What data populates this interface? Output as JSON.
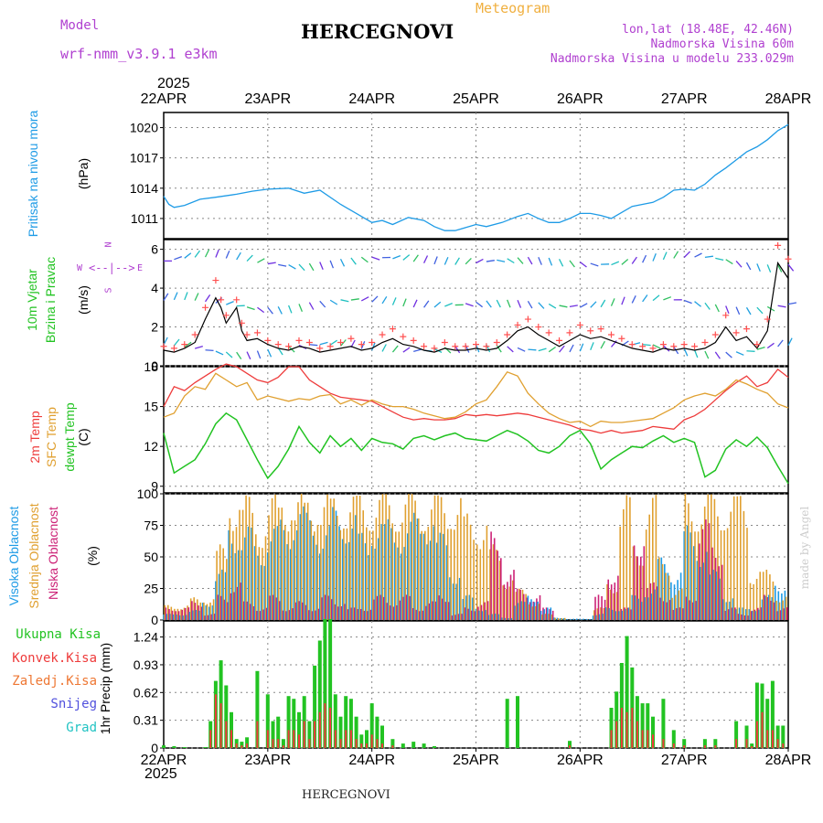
{
  "header": {
    "model_label": "Model",
    "model_name": "wrf-nmm_v3.9.1  e3km",
    "title": "HERCEGNOVI",
    "meteogram_label": "Meteogram",
    "coords": "lon,lat (18.48E, 42.46N)",
    "altitude": "Nadmorska Visina 60m",
    "model_altitude": "Nadmorska Visina u modelu 233.029m"
  },
  "footer": {
    "station": "HERCEGNOVI",
    "credit": "made by Angel"
  },
  "colors": {
    "pressure": "#1e9be6",
    "wind_speed": "#000000",
    "wind_gust": "#ff5050",
    "temp2m": "#ee3b3b",
    "sfc_temp": "#e0a030",
    "dewpt": "#22c322",
    "cloud_high": "#1e9be6",
    "cloud_mid": "#e0a030",
    "cloud_low": "#cc2277",
    "precip_total": "#22c322",
    "precip_conv": "#ee3b3b",
    "precip_frozen": "#ee7733",
    "precip_snow": "#5050dd",
    "precip_hail": "#22c3c3",
    "wind_label": "#22c322",
    "wind_axis_label": "#b040d0",
    "header_purple": "#b040d0",
    "header_orange": "#f0b040"
  },
  "time_axis": {
    "year": "2025",
    "days": [
      "22APR",
      "23APR",
      "24APR",
      "25APR",
      "26APR",
      "27APR",
      "28APR"
    ]
  },
  "chart_data": [
    {
      "id": "pressure",
      "type": "line",
      "ylabel_colored": "Pritisak na nivou mora",
      "ylabel_unit": "(hPa)",
      "yticks": [
        "1020",
        "1017",
        "1014",
        "1011"
      ],
      "ylim": [
        1009,
        1021.5
      ],
      "x": [
        0,
        0.05,
        0.1,
        0.2,
        0.35,
        0.5,
        0.7,
        0.85,
        1.0,
        1.2,
        1.35,
        1.5,
        1.7,
        1.9,
        2.0,
        2.1,
        2.2,
        2.35,
        2.5,
        2.6,
        2.7,
        2.8,
        2.9,
        3.0,
        3.1,
        3.25,
        3.4,
        3.5,
        3.6,
        3.7,
        3.8,
        3.9,
        4.0,
        4.1,
        4.2,
        4.3,
        4.4,
        4.5,
        4.6,
        4.7,
        4.8,
        4.9,
        5.0,
        5.1,
        5.2,
        5.3,
        5.4,
        5.5,
        5.6,
        5.7,
        5.8,
        5.9,
        6.0
      ],
      "series": [
        {
          "name": "Pritisak",
          "values": [
            1013.2,
            1012.4,
            1012.1,
            1012.3,
            1012.9,
            1013.1,
            1013.4,
            1013.7,
            1013.9,
            1014.0,
            1013.5,
            1013.8,
            1012.4,
            1011.2,
            1010.6,
            1010.8,
            1010.4,
            1011.1,
            1010.8,
            1010.2,
            1009.8,
            1009.8,
            1010.1,
            1010.4,
            1010.2,
            1010.6,
            1011.2,
            1011.5,
            1011.0,
            1010.6,
            1010.6,
            1011.0,
            1011.5,
            1011.5,
            1011.3,
            1011.0,
            1011.6,
            1012.2,
            1012.4,
            1012.6,
            1013.1,
            1013.8,
            1013.9,
            1013.8,
            1014.4,
            1015.3,
            1016.0,
            1016.8,
            1017.6,
            1018.1,
            1018.8,
            1019.7,
            1020.3
          ]
        }
      ]
    },
    {
      "id": "wind",
      "type": "line",
      "ylabel_colored": "10m Vjetar",
      "ylabel_colored2": "Brzina i Pravac",
      "ylabel_unit": "(m/s)",
      "compass": {
        "north": "N",
        "south": "S",
        "west": "W",
        "east": "E"
      },
      "yticks": [
        "6",
        "4",
        "2",
        "0"
      ],
      "ylim": [
        0,
        6.5
      ],
      "x": [
        0,
        0.1,
        0.2,
        0.3,
        0.4,
        0.5,
        0.55,
        0.6,
        0.7,
        0.75,
        0.8,
        0.9,
        1.0,
        1.1,
        1.2,
        1.3,
        1.4,
        1.5,
        1.6,
        1.7,
        1.8,
        1.9,
        2.0,
        2.1,
        2.2,
        2.3,
        2.4,
        2.5,
        2.6,
        2.7,
        2.8,
        2.9,
        3.0,
        3.1,
        3.2,
        3.3,
        3.4,
        3.5,
        3.6,
        3.7,
        3.8,
        3.9,
        4.0,
        4.1,
        4.2,
        4.3,
        4.4,
        4.5,
        4.6,
        4.7,
        4.8,
        4.9,
        5.0,
        5.1,
        5.2,
        5.3,
        5.4,
        5.5,
        5.6,
        5.7,
        5.8,
        5.9,
        6.0
      ],
      "series": [
        {
          "name": "speed",
          "values": [
            0.8,
            0.7,
            0.9,
            1.2,
            2.4,
            3.5,
            3.0,
            2.2,
            3.0,
            1.8,
            1.3,
            1.4,
            1.1,
            0.9,
            0.8,
            1.0,
            0.9,
            0.7,
            0.8,
            0.9,
            1.0,
            0.8,
            0.9,
            1.2,
            1.4,
            1.1,
            1.0,
            0.8,
            0.7,
            0.9,
            0.8,
            0.8,
            0.9,
            0.8,
            0.9,
            1.3,
            1.8,
            2.0,
            1.6,
            1.3,
            1.0,
            1.3,
            1.6,
            1.4,
            1.5,
            1.3,
            1.1,
            0.9,
            0.8,
            0.7,
            0.9,
            0.8,
            0.9,
            0.8,
            0.9,
            1.2,
            2.0,
            1.3,
            1.5,
            0.9,
            1.8,
            5.3,
            4.5
          ]
        },
        {
          "name": "gust",
          "values": [
            1.0,
            0.9,
            1.1,
            1.6,
            3.0,
            4.4,
            3.4,
            2.6,
            3.4,
            2.2,
            1.6,
            1.7,
            1.3,
            1.1,
            1.0,
            1.3,
            1.2,
            0.9,
            1.0,
            1.2,
            1.4,
            1.1,
            1.2,
            1.6,
            1.9,
            1.5,
            1.3,
            1.0,
            0.9,
            1.2,
            1.0,
            1.0,
            1.1,
            1.0,
            1.2,
            1.6,
            2.1,
            2.4,
            2.0,
            1.7,
            1.3,
            1.7,
            2.1,
            1.8,
            1.9,
            1.6,
            1.4,
            1.1,
            1.0,
            0.9,
            1.1,
            1.0,
            1.1,
            1.0,
            1.2,
            1.6,
            2.6,
            1.7,
            1.9,
            1.1,
            2.4,
            6.2,
            5.5
          ]
        }
      ]
    },
    {
      "id": "temperature",
      "type": "line",
      "ylabel_colored": "2m Temp",
      "ylabel_colored2": "SFC Temp",
      "ylabel_colored3": "dewpt Temp",
      "ylabel_unit": "(C)",
      "yticks": [
        "18",
        "15",
        "12",
        "9"
      ],
      "ylim": [
        8.5,
        18
      ],
      "x": [
        0,
        0.1,
        0.2,
        0.3,
        0.4,
        0.5,
        0.6,
        0.7,
        0.8,
        0.9,
        1.0,
        1.1,
        1.2,
        1.3,
        1.4,
        1.5,
        1.6,
        1.7,
        1.8,
        1.9,
        2.0,
        2.1,
        2.2,
        2.3,
        2.4,
        2.5,
        2.6,
        2.7,
        2.8,
        2.9,
        3.0,
        3.1,
        3.2,
        3.3,
        3.4,
        3.5,
        3.6,
        3.7,
        3.8,
        3.9,
        4.0,
        4.1,
        4.2,
        4.3,
        4.4,
        4.5,
        4.6,
        4.7,
        4.8,
        4.9,
        5.0,
        5.1,
        5.2,
        5.3,
        5.4,
        5.5,
        5.6,
        5.7,
        5.8,
        5.9,
        6.0
      ],
      "series": [
        {
          "name": "2m Temp",
          "values": [
            15.0,
            16.5,
            16.2,
            16.8,
            17.3,
            17.8,
            18.2,
            18.0,
            17.5,
            17.0,
            16.8,
            17.2,
            18.0,
            18.0,
            17.0,
            16.5,
            16.0,
            15.7,
            15.6,
            15.5,
            15.4,
            15.0,
            14.6,
            14.2,
            14.0,
            14.1,
            14.0,
            14.0,
            14.1,
            14.4,
            14.3,
            14.4,
            14.3,
            14.4,
            14.5,
            14.4,
            14.2,
            14.0,
            13.8,
            13.6,
            13.3,
            13.2,
            13.0,
            13.2,
            13.0,
            13.1,
            13.2,
            13.5,
            13.4,
            13.3,
            14.0,
            14.3,
            14.8,
            15.5,
            16.2,
            16.8,
            17.3,
            16.5,
            16.8,
            17.8,
            17.2
          ]
        },
        {
          "name": "SFC Temp",
          "values": [
            14.2,
            14.5,
            15.8,
            16.5,
            16.3,
            17.5,
            17.0,
            16.5,
            16.8,
            15.5,
            15.8,
            15.6,
            15.4,
            15.6,
            15.5,
            15.8,
            15.9,
            15.2,
            15.5,
            15.1,
            15.5,
            15.2,
            15.0,
            15.0,
            14.8,
            14.5,
            14.3,
            14.1,
            14.2,
            14.6,
            15.2,
            15.5,
            16.5,
            17.6,
            17.3,
            16.0,
            15.2,
            14.5,
            14.1,
            13.8,
            13.9,
            13.5,
            13.9,
            13.8,
            13.8,
            13.9,
            14.0,
            14.1,
            14.5,
            14.9,
            15.5,
            15.8,
            16.0,
            15.8,
            16.3,
            17.0,
            16.7,
            16.3,
            16.0,
            15.2,
            14.9
          ]
        },
        {
          "name": "dewpt Temp",
          "values": [
            13.0,
            10.0,
            10.5,
            11.0,
            12.2,
            13.7,
            14.5,
            14.0,
            12.5,
            11.0,
            9.6,
            10.5,
            11.8,
            13.5,
            12.3,
            11.5,
            12.8,
            12.0,
            12.6,
            11.7,
            12.6,
            12.3,
            12.2,
            11.8,
            12.6,
            12.8,
            12.5,
            12.8,
            13.0,
            12.6,
            12.5,
            12.4,
            12.8,
            13.2,
            12.9,
            12.4,
            11.7,
            11.5,
            12.0,
            12.8,
            13.2,
            12.2,
            10.3,
            11.0,
            11.5,
            12.0,
            11.9,
            12.4,
            12.8,
            12.3,
            12.6,
            12.3,
            9.7,
            10.2,
            11.8,
            12.5,
            12.0,
            12.7,
            11.9,
            10.5,
            9.2
          ]
        }
      ]
    },
    {
      "id": "clouds",
      "type": "bar",
      "ylabel_colored": "Visoka Oblacnost",
      "ylabel_colored2": "Srednja Oblacnost",
      "ylabel_colored3": "Niska Oblacnost",
      "ylabel_unit": "(%)",
      "yticks": [
        "100",
        "75",
        "50",
        "25",
        "0"
      ],
      "ylim": [
        0,
        100
      ],
      "x": [
        0,
        0.125,
        0.25,
        0.375,
        0.5,
        0.625,
        0.75,
        0.875,
        1.0,
        1.125,
        1.25,
        1.375,
        1.5,
        1.625,
        1.75,
        1.875,
        2.0,
        2.125,
        2.25,
        2.375,
        2.5,
        2.625,
        2.75,
        2.875,
        3.0,
        3.125,
        3.25,
        3.375,
        3.5,
        3.625,
        3.75,
        3.875,
        4.0,
        4.125,
        4.25,
        4.375,
        4.5,
        4.625,
        4.75,
        4.875,
        5.0,
        5.125,
        5.25,
        5.375,
        5.5,
        5.625,
        5.75,
        5.875
      ],
      "series": [
        {
          "name": "Visoka",
          "values": [
            5,
            5,
            8,
            15,
            40,
            75,
            75,
            60,
            75,
            80,
            90,
            85,
            75,
            90,
            85,
            70,
            80,
            80,
            75,
            85,
            85,
            70,
            40,
            20,
            10,
            5,
            2,
            15,
            20,
            10,
            2,
            1,
            1,
            5,
            10,
            10,
            20,
            25,
            50,
            40,
            75,
            60,
            40,
            20,
            10,
            10,
            20,
            30
          ]
        },
        {
          "name": "Srednja",
          "values": [
            12,
            12,
            18,
            18,
            60,
            100,
            100,
            80,
            100,
            100,
            100,
            100,
            100,
            100,
            100,
            100,
            100,
            100,
            100,
            100,
            100,
            100,
            100,
            85,
            80,
            60,
            35,
            25,
            15,
            5,
            2,
            0,
            0,
            10,
            30,
            100,
            60,
            100,
            50,
            25,
            100,
            100,
            100,
            100,
            100,
            40,
            40,
            20
          ]
        },
        {
          "name": "Niska",
          "values": [
            10,
            10,
            15,
            5,
            20,
            30,
            15,
            10,
            20,
            10,
            15,
            10,
            20,
            15,
            10,
            10,
            20,
            15,
            20,
            10,
            15,
            20,
            5,
            10,
            15,
            70,
            40,
            25,
            20,
            10,
            0,
            0,
            0,
            20,
            40,
            10,
            70,
            30,
            20,
            10,
            20,
            80,
            60,
            10,
            5,
            10,
            20,
            10
          ]
        }
      ]
    },
    {
      "id": "precip",
      "type": "bar",
      "ylabel_unit": "1hr Precip (mm)",
      "legend": [
        "Ukupna Kisa",
        "Konvek.Kisa",
        "Zaledj.Kisa",
        "Snijeg",
        "Grad"
      ],
      "yticks": [
        "1.24",
        "0.93",
        "0.62",
        "0.31",
        "0"
      ],
      "ylim": [
        0,
        1.42
      ],
      "x": [
        0.0,
        0.1,
        0.2,
        0.3,
        0.4,
        0.45,
        0.5,
        0.55,
        0.6,
        0.65,
        0.7,
        0.75,
        0.8,
        0.9,
        1.0,
        1.05,
        1.1,
        1.15,
        1.2,
        1.25,
        1.3,
        1.35,
        1.4,
        1.45,
        1.5,
        1.55,
        1.6,
        1.65,
        1.7,
        1.75,
        1.8,
        1.85,
        1.9,
        1.95,
        2.0,
        2.05,
        2.1,
        2.2,
        2.3,
        2.4,
        2.5,
        2.6,
        2.7,
        2.8,
        2.9,
        3.0,
        3.1,
        3.2,
        3.3,
        3.4,
        3.5,
        3.6,
        3.7,
        3.8,
        3.9,
        4.0,
        4.1,
        4.15,
        4.2,
        4.25,
        4.3,
        4.35,
        4.4,
        4.45,
        4.5,
        4.55,
        4.6,
        4.65,
        4.7,
        4.8,
        4.9,
        5.0,
        5.1,
        5.2,
        5.3,
        5.4,
        5.5,
        5.6,
        5.65,
        5.7,
        5.75,
        5.8,
        5.85,
        5.9,
        5.95
      ],
      "series": [
        {
          "name": "Ukupna Kisa",
          "values": [
            0.03,
            0.02,
            0.01,
            0.0,
            0.01,
            0.3,
            0.75,
            0.98,
            0.7,
            0.4,
            0.1,
            0.07,
            0.12,
            0.86,
            0.6,
            0.3,
            0.35,
            0.1,
            0.58,
            0.55,
            0.4,
            0.58,
            0.3,
            0.92,
            1.2,
            1.44,
            1.44,
            0.6,
            0.35,
            0.58,
            0.55,
            0.35,
            0.15,
            0.2,
            0.5,
            0.35,
            0.25,
            0.1,
            0.05,
            0.07,
            0.05,
            0.02,
            0.0,
            0.0,
            0.0,
            0.0,
            0.0,
            0.0,
            0.55,
            0.58,
            0.0,
            0.0,
            0.0,
            0.0,
            0.08,
            0.0,
            0.0,
            0.0,
            0.0,
            0.0,
            0.45,
            0.63,
            0.95,
            1.25,
            0.9,
            0.58,
            0.5,
            0.5,
            0.35,
            0.55,
            0.2,
            0.1,
            0.0,
            0.1,
            0.1,
            0.0,
            0.3,
            0.25,
            0.05,
            0.73,
            0.72,
            0.55,
            0.75,
            0.25,
            0.25
          ]
        },
        {
          "name": "Konvek.Kisa",
          "values": [
            0.0,
            0.0,
            0.0,
            0.0,
            0.0,
            0.2,
            0.6,
            0.5,
            0.3,
            0.2,
            0.05,
            0.03,
            0.05,
            0.3,
            0.2,
            0.1,
            0.1,
            0.03,
            0.2,
            0.2,
            0.15,
            0.3,
            0.1,
            0.3,
            0.4,
            0.5,
            0.45,
            0.2,
            0.1,
            0.2,
            0.2,
            0.1,
            0.05,
            0.05,
            0.15,
            0.1,
            0.05,
            0.03,
            0.0,
            0.0,
            0.0,
            0.0,
            0.0,
            0.0,
            0.0,
            0.0,
            0.0,
            0.0,
            0.0,
            0.0,
            0.0,
            0.0,
            0.0,
            0.0,
            0.03,
            0.0,
            0.0,
            0.0,
            0.0,
            0.0,
            0.2,
            0.3,
            0.45,
            0.4,
            0.45,
            0.3,
            0.2,
            0.2,
            0.15,
            0.1,
            0.05,
            0.03,
            0.0,
            0.03,
            0.03,
            0.0,
            0.1,
            0.1,
            0.02,
            0.3,
            0.4,
            0.2,
            0.2,
            0.1,
            0.05
          ]
        }
      ]
    }
  ]
}
